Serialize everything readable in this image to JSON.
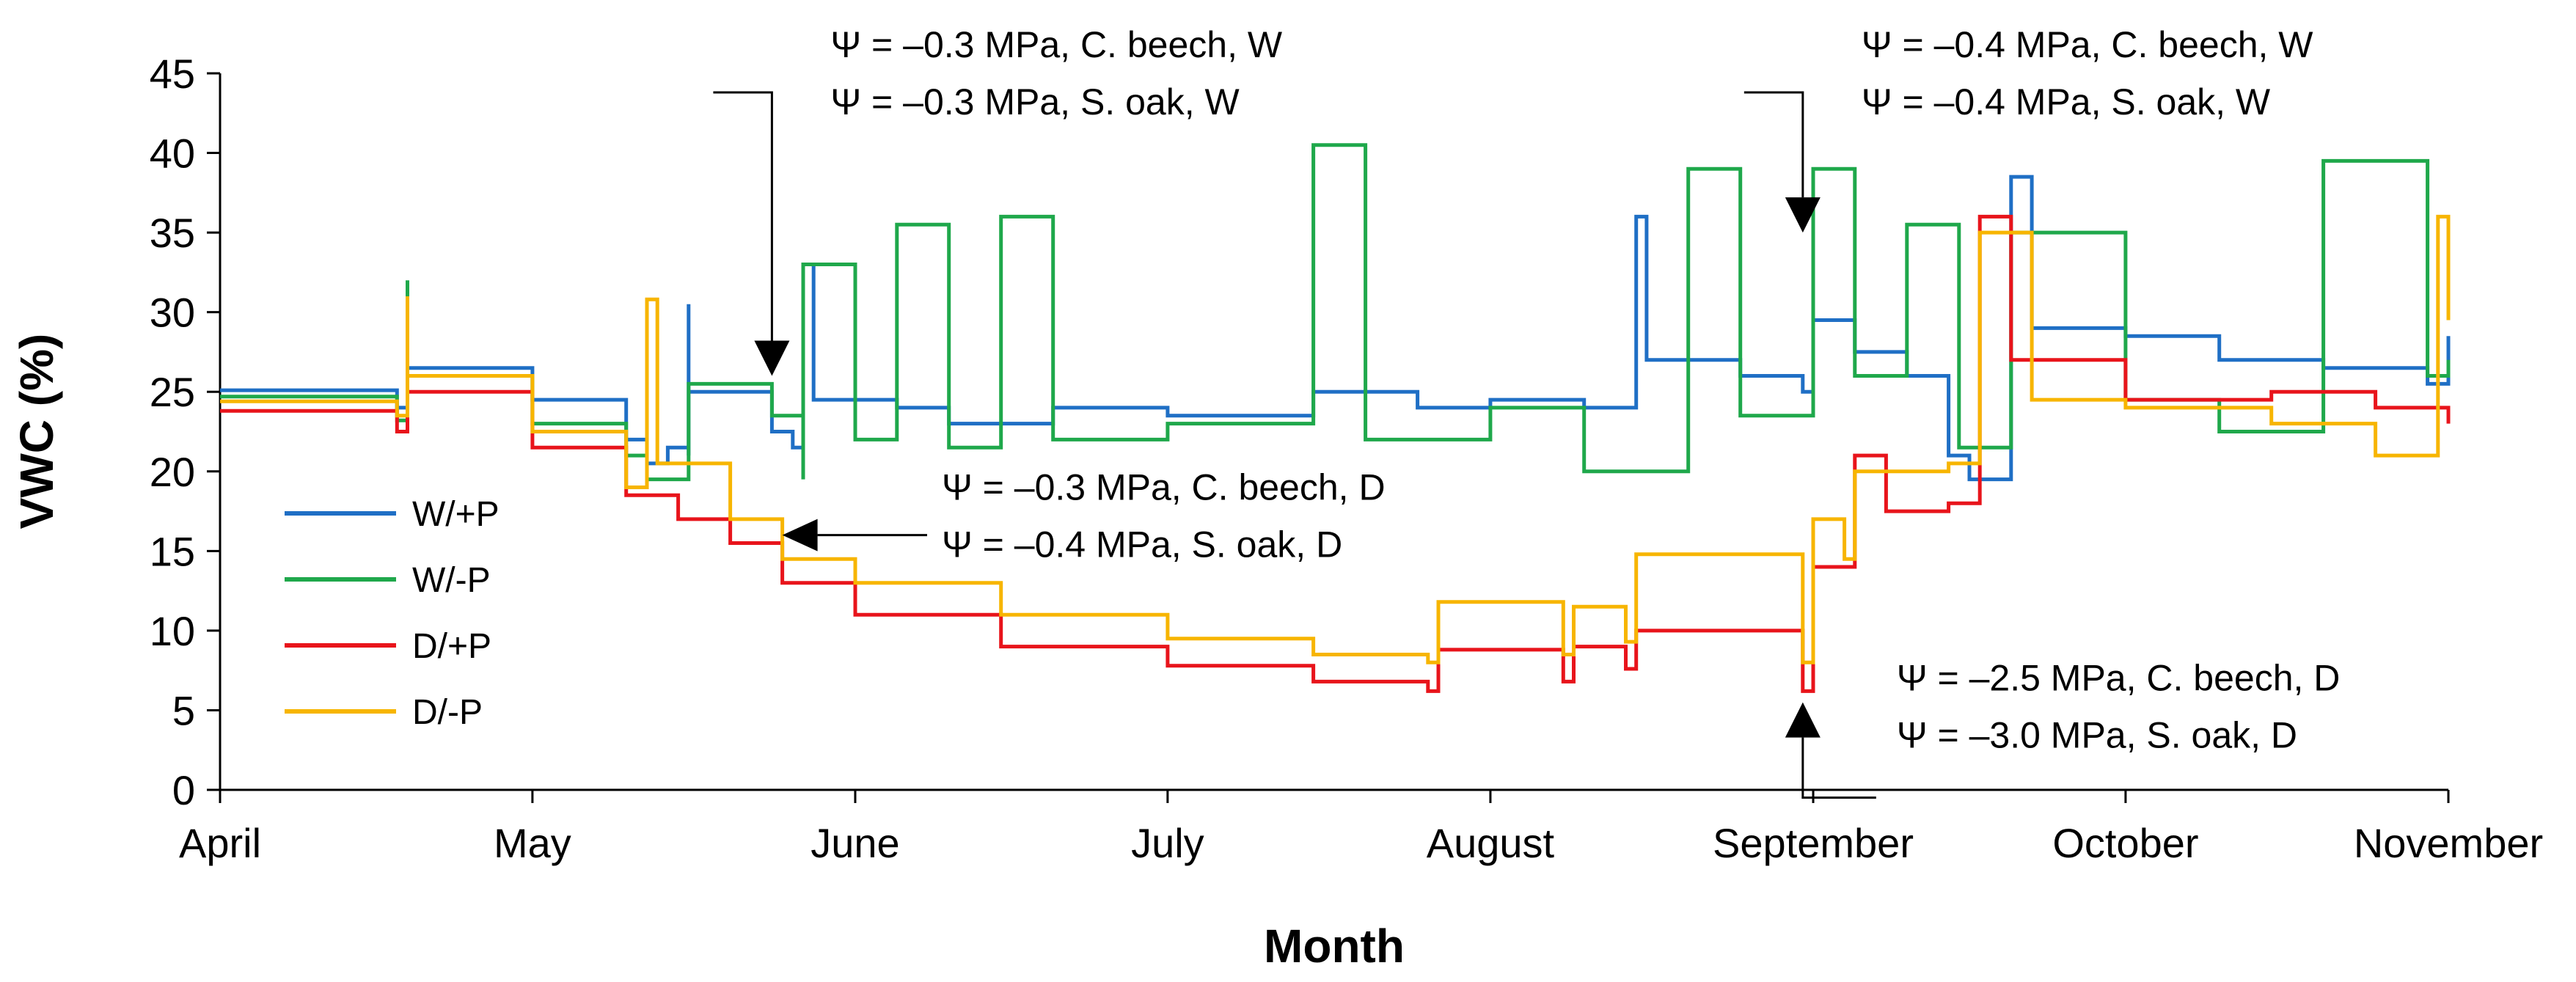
{
  "chart_data": {
    "type": "line",
    "xlabel": "Month",
    "ylabel": "VWC (%)",
    "ylim": [
      0,
      45
    ],
    "yticks": [
      "0",
      "5",
      "10",
      "15",
      "20",
      "25",
      "30",
      "35",
      "40",
      "45"
    ],
    "xlim": [
      "2018-04-01",
      "2018-11-01"
    ],
    "month_ticks": [
      {
        "label": "April",
        "date": "2018-04-01"
      },
      {
        "label": "May",
        "date": "2018-05-01"
      },
      {
        "label": "June",
        "date": "2018-06-01"
      },
      {
        "label": "July",
        "date": "2018-07-01"
      },
      {
        "label": "August",
        "date": "2018-08-01"
      },
      {
        "label": "September",
        "date": "2018-09-01"
      },
      {
        "label": "October",
        "date": "2018-10-01"
      },
      {
        "label": "November",
        "date": "2018-11-01"
      }
    ],
    "legend_position": "left",
    "series": [
      {
        "name": "W/+P",
        "color": "#1f6fc5",
        "values": [
          [
            "2018-04-01",
            25.1
          ],
          [
            "2018-04-18",
            24.0
          ],
          [
            "2018-04-19",
            31.5
          ],
          [
            "2018-04-19",
            26.5
          ],
          [
            "2018-05-01",
            24.5
          ],
          [
            "2018-05-10",
            22.0
          ],
          [
            "2018-05-12",
            20.5
          ],
          [
            "2018-05-14",
            21.5
          ],
          [
            "2018-05-16",
            21.0
          ],
          [
            "2018-05-16",
            30.5
          ],
          [
            "2018-05-16",
            25.0
          ],
          [
            "2018-05-24",
            22.5
          ],
          [
            "2018-05-26",
            21.5
          ],
          [
            "2018-05-27",
            33.0
          ],
          [
            "2018-05-28",
            24.5
          ],
          [
            "2018-06-05",
            24.0
          ],
          [
            "2018-06-10",
            23.0
          ],
          [
            "2018-06-20",
            24.0
          ],
          [
            "2018-07-01",
            23.5
          ],
          [
            "2018-07-15",
            25.0
          ],
          [
            "2018-07-25",
            24.0
          ],
          [
            "2018-08-01",
            24.5
          ],
          [
            "2018-08-10",
            24.0
          ],
          [
            "2018-08-15",
            36.0
          ],
          [
            "2018-08-16",
            27.0
          ],
          [
            "2018-08-25",
            26.0
          ],
          [
            "2018-08-31",
            25.0
          ],
          [
            "2018-09-01",
            29.5
          ],
          [
            "2018-09-05",
            27.5
          ],
          [
            "2018-09-10",
            26.0
          ],
          [
            "2018-09-14",
            21.0
          ],
          [
            "2018-09-16",
            19.5
          ],
          [
            "2018-09-20",
            38.5
          ],
          [
            "2018-09-22",
            29.0
          ],
          [
            "2018-10-01",
            28.5
          ],
          [
            "2018-10-10",
            27.0
          ],
          [
            "2018-10-20",
            26.5
          ],
          [
            "2018-10-30",
            25.5
          ],
          [
            "2018-11-01",
            28.5
          ]
        ]
      },
      {
        "name": "W/-P",
        "color": "#1fa84b",
        "values": [
          [
            "2018-04-01",
            24.7
          ],
          [
            "2018-04-18",
            23.2
          ],
          [
            "2018-04-19",
            32.0
          ],
          [
            "2018-04-19",
            26.0
          ],
          [
            "2018-05-01",
            23.0
          ],
          [
            "2018-05-10",
            21.0
          ],
          [
            "2018-05-12",
            19.5
          ],
          [
            "2018-05-16",
            20.0
          ],
          [
            "2018-05-16",
            25.5
          ],
          [
            "2018-05-24",
            23.5
          ],
          [
            "2018-05-27",
            19.5
          ],
          [
            "2018-05-27",
            33.0
          ],
          [
            "2018-06-01",
            22.0
          ],
          [
            "2018-06-05",
            35.5
          ],
          [
            "2018-06-10",
            21.5
          ],
          [
            "2018-06-15",
            36.0
          ],
          [
            "2018-06-20",
            22.0
          ],
          [
            "2018-07-01",
            23.0
          ],
          [
            "2018-07-15",
            40.5
          ],
          [
            "2018-07-20",
            22.0
          ],
          [
            "2018-08-01",
            24.0
          ],
          [
            "2018-08-10",
            20.0
          ],
          [
            "2018-08-20",
            39.0
          ],
          [
            "2018-08-25",
            23.5
          ],
          [
            "2018-09-01",
            39.0
          ],
          [
            "2018-09-05",
            26.0
          ],
          [
            "2018-09-10",
            35.5
          ],
          [
            "2018-09-15",
            21.5
          ],
          [
            "2018-09-20",
            35.0
          ],
          [
            "2018-10-01",
            24.5
          ],
          [
            "2018-10-10",
            22.5
          ],
          [
            "2018-10-20",
            39.5
          ],
          [
            "2018-10-30",
            26.0
          ],
          [
            "2018-11-01",
            27.0
          ]
        ]
      },
      {
        "name": "D/+P",
        "color": "#e8141b",
        "values": [
          [
            "2018-04-01",
            23.8
          ],
          [
            "2018-04-18",
            22.5
          ],
          [
            "2018-04-19",
            25.0
          ],
          [
            "2018-05-01",
            21.5
          ],
          [
            "2018-05-10",
            18.5
          ],
          [
            "2018-05-15",
            17.0
          ],
          [
            "2018-05-20",
            15.5
          ],
          [
            "2018-05-25",
            13.0
          ],
          [
            "2018-06-01",
            11.0
          ],
          [
            "2018-06-15",
            9.0
          ],
          [
            "2018-07-01",
            7.8
          ],
          [
            "2018-07-15",
            6.8
          ],
          [
            "2018-07-26",
            6.2
          ],
          [
            "2018-07-27",
            8.8
          ],
          [
            "2018-08-08",
            6.8
          ],
          [
            "2018-08-09",
            9.0
          ],
          [
            "2018-08-14",
            7.6
          ],
          [
            "2018-08-15",
            10.0
          ],
          [
            "2018-08-31",
            6.2
          ],
          [
            "2018-09-01",
            14.0
          ],
          [
            "2018-09-04",
            14.0
          ],
          [
            "2018-09-05",
            21.0
          ],
          [
            "2018-09-08",
            17.5
          ],
          [
            "2018-09-14",
            18.0
          ],
          [
            "2018-09-17",
            36.0
          ],
          [
            "2018-09-20",
            27.0
          ],
          [
            "2018-10-01",
            24.5
          ],
          [
            "2018-10-15",
            25.0
          ],
          [
            "2018-10-25",
            24.0
          ],
          [
            "2018-11-01",
            23.0
          ]
        ]
      },
      {
        "name": "D/-P",
        "color": "#f7b500",
        "values": [
          [
            "2018-04-01",
            24.4
          ],
          [
            "2018-04-18",
            23.5
          ],
          [
            "2018-04-19",
            31.0
          ],
          [
            "2018-04-19",
            26.0
          ],
          [
            "2018-05-01",
            22.5
          ],
          [
            "2018-05-10",
            19.0
          ],
          [
            "2018-05-12",
            30.8
          ],
          [
            "2018-05-13",
            20.5
          ],
          [
            "2018-05-20",
            17.0
          ],
          [
            "2018-05-25",
            14.5
          ],
          [
            "2018-06-01",
            13.0
          ],
          [
            "2018-06-15",
            11.0
          ],
          [
            "2018-07-01",
            9.5
          ],
          [
            "2018-07-15",
            8.5
          ],
          [
            "2018-07-26",
            8.0
          ],
          [
            "2018-07-27",
            11.8
          ],
          [
            "2018-08-08",
            8.5
          ],
          [
            "2018-08-09",
            11.5
          ],
          [
            "2018-08-14",
            9.3
          ],
          [
            "2018-08-15",
            14.8
          ],
          [
            "2018-08-31",
            8.0
          ],
          [
            "2018-09-01",
            17.0
          ],
          [
            "2018-09-04",
            14.5
          ],
          [
            "2018-09-05",
            20.0
          ],
          [
            "2018-09-14",
            20.5
          ],
          [
            "2018-09-17",
            35.0
          ],
          [
            "2018-09-22",
            24.5
          ],
          [
            "2018-10-01",
            24.0
          ],
          [
            "2018-10-15",
            23.0
          ],
          [
            "2018-10-25",
            21.0
          ],
          [
            "2018-10-31",
            36.0
          ],
          [
            "2018-11-01",
            29.5
          ]
        ]
      }
    ],
    "annotations": [
      {
        "line1": "Ψ = –0.3 MPa, C. beech, W",
        "line2": "Ψ = –0.3 MPa, S. oak, W",
        "date": "2018-05-24",
        "value": 26.0,
        "direction": "down"
      },
      {
        "line1": "Ψ = –0.4 MPa, C. beech, W",
        "line2": "Ψ = –0.4 MPa, S. oak, W",
        "date": "2018-08-31",
        "value": 35.0,
        "direction": "down"
      },
      {
        "line1": "Ψ = –0.3 MPa, C. beech, D",
        "line2": "Ψ = –0.4 MPa, S. oak, D",
        "date": "2018-05-25",
        "value": 16.0,
        "direction": "left"
      },
      {
        "line1": "Ψ = –2.5 MPa, C. beech, D",
        "line2": "Ψ = –3.0 MPa, S. oak, D",
        "date": "2018-08-31",
        "value": 5.5,
        "direction": "up"
      }
    ]
  }
}
